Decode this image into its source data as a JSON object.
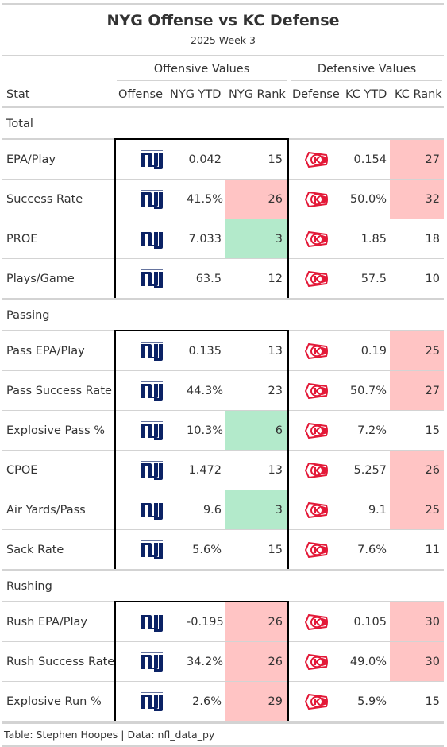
{
  "title": "NYG Offense vs KC Defense",
  "subtitle": "2025 Week 3",
  "spanners": {
    "offense": "Offensive Values",
    "defense": "Defensive Values"
  },
  "columns": {
    "stat": "Stat",
    "offense": "Offense",
    "nyg_ytd": "NYG YTD",
    "nyg_rank": "NYG Rank",
    "defense": "Defense",
    "kc_ytd": "KC YTD",
    "kc_rank": "KC Rank"
  },
  "colors": {
    "red_highlight": "#ffc4c4",
    "green_highlight": "#b3eacb",
    "giants_blue": "#0b2265",
    "chiefs_red": "#e31837"
  },
  "icons": {
    "offense_logo": "giants-logo",
    "defense_logo": "chiefs-logo"
  },
  "groups": [
    {
      "label": "Total",
      "rows": [
        {
          "stat": "EPA/Play",
          "nyg_ytd": "0.042",
          "nyg_rank": "15",
          "nyg_hl": "",
          "kc_ytd": "0.154",
          "kc_rank": "27",
          "kc_hl": "red"
        },
        {
          "stat": "Success Rate",
          "nyg_ytd": "41.5%",
          "nyg_rank": "26",
          "nyg_hl": "red",
          "kc_ytd": "50.0%",
          "kc_rank": "32",
          "kc_hl": "red"
        },
        {
          "stat": "PROE",
          "nyg_ytd": "7.033",
          "nyg_rank": "3",
          "nyg_hl": "green",
          "kc_ytd": "1.85",
          "kc_rank": "18",
          "kc_hl": ""
        },
        {
          "stat": "Plays/Game",
          "nyg_ytd": "63.5",
          "nyg_rank": "12",
          "nyg_hl": "",
          "kc_ytd": "57.5",
          "kc_rank": "10",
          "kc_hl": ""
        }
      ]
    },
    {
      "label": "Passing",
      "rows": [
        {
          "stat": "Pass EPA/Play",
          "nyg_ytd": "0.135",
          "nyg_rank": "13",
          "nyg_hl": "",
          "kc_ytd": "0.19",
          "kc_rank": "25",
          "kc_hl": "red"
        },
        {
          "stat": "Pass Success Rate",
          "nyg_ytd": "44.3%",
          "nyg_rank": "23",
          "nyg_hl": "",
          "kc_ytd": "50.7%",
          "kc_rank": "27",
          "kc_hl": "red"
        },
        {
          "stat": "Explosive Pass %",
          "nyg_ytd": "10.3%",
          "nyg_rank": "6",
          "nyg_hl": "green",
          "kc_ytd": "7.2%",
          "kc_rank": "15",
          "kc_hl": ""
        },
        {
          "stat": "CPOE",
          "nyg_ytd": "1.472",
          "nyg_rank": "13",
          "nyg_hl": "",
          "kc_ytd": "5.257",
          "kc_rank": "26",
          "kc_hl": "red"
        },
        {
          "stat": "Air Yards/Pass",
          "nyg_ytd": "9.6",
          "nyg_rank": "3",
          "nyg_hl": "green",
          "kc_ytd": "9.1",
          "kc_rank": "25",
          "kc_hl": "red"
        },
        {
          "stat": "Sack Rate",
          "nyg_ytd": "5.6%",
          "nyg_rank": "15",
          "nyg_hl": "",
          "kc_ytd": "7.6%",
          "kc_rank": "11",
          "kc_hl": ""
        }
      ]
    },
    {
      "label": "Rushing",
      "rows": [
        {
          "stat": "Rush EPA/Play",
          "nyg_ytd": "-0.195",
          "nyg_rank": "26",
          "nyg_hl": "red",
          "kc_ytd": "0.105",
          "kc_rank": "30",
          "kc_hl": "red"
        },
        {
          "stat": "Rush Success Rate",
          "nyg_ytd": "34.2%",
          "nyg_rank": "26",
          "nyg_hl": "red",
          "kc_ytd": "49.0%",
          "kc_rank": "30",
          "kc_hl": "red"
        },
        {
          "stat": "Explosive Run %",
          "nyg_ytd": "2.6%",
          "nyg_rank": "29",
          "nyg_hl": "red",
          "kc_ytd": "5.9%",
          "kc_rank": "15",
          "kc_hl": ""
        }
      ]
    }
  ],
  "footer": "Table: Stephen Hoopes | Data: nfl_data_py"
}
